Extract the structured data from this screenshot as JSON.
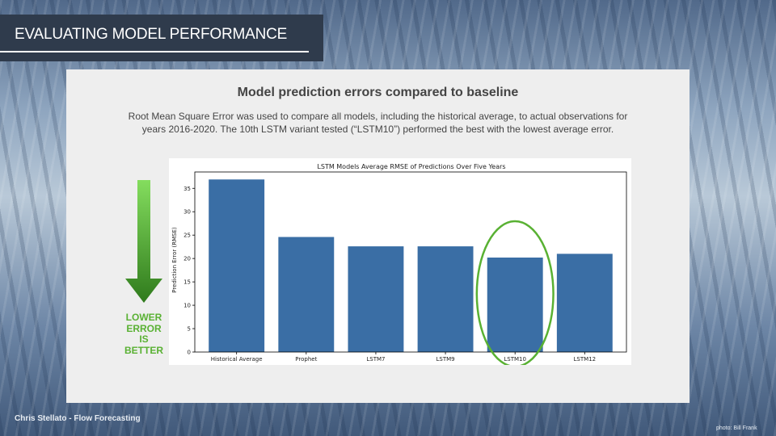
{
  "slide": {
    "title": "EVALUATING MODEL PERFORMANCE",
    "panel_title": "Model prediction errors compared to baseline",
    "description": "Root Mean Square Error was used to compare all models, including the historical average, to actual observations for years 2016-2020. The 10th LSTM variant tested (“LSTM10”) performed the best with the lowest average error.",
    "callout_lines": [
      "LOWER",
      "ERROR",
      "IS",
      "BETTER"
    ],
    "footer_left": "Chris Stellato - Flow Forecasting",
    "footer_right": "photo: Bill Frank"
  },
  "colors": {
    "bar": "#3a6ea5",
    "highlight": "#59b133",
    "title_bar": "#2f3b4c",
    "panel": "#eeeeee"
  },
  "icons": {
    "arrow": "down-arrow-icon"
  },
  "chart_data": {
    "type": "bar",
    "title": "LSTM Models Average RMSE of Predictions Over Five Years",
    "xlabel": "",
    "ylabel": "Prediction Error (RMSE)",
    "categories": [
      "Historical Average",
      "Prophet",
      "LSTM7",
      "LSTM9",
      "LSTM10",
      "LSTM12"
    ],
    "values": [
      36.9,
      24.6,
      22.6,
      22.6,
      20.2,
      21.0
    ],
    "ylim": [
      0,
      38.5
    ],
    "yticks": [
      0,
      5,
      10,
      15,
      20,
      25,
      30,
      35
    ],
    "highlighted_category": "LSTM10",
    "grid": false,
    "legend": "none"
  }
}
